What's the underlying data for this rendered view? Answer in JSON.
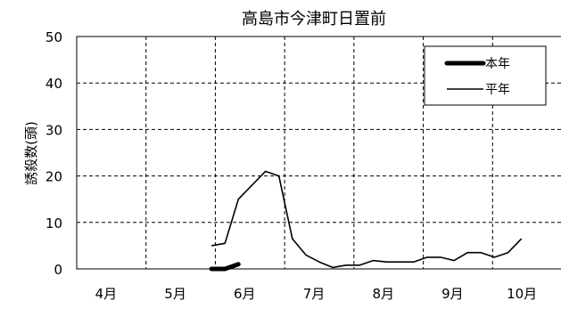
{
  "chart_data": {
    "type": "line",
    "title": "高島市今津町日置前",
    "ylabel": "誘殺数(頭)",
    "xlabel": "",
    "ylim": [
      0,
      50
    ],
    "yticks": [
      0,
      10,
      20,
      30,
      40,
      50
    ],
    "xlim": [
      0,
      36
    ],
    "categories": [
      "4月",
      "5月",
      "6月",
      "7月",
      "8月",
      "9月",
      "10月"
    ],
    "grid": true,
    "legend_position": "top-right",
    "series": [
      {
        "name": "本年",
        "style": "thick",
        "x": [
          10,
          11,
          12
        ],
        "y": [
          0,
          0,
          1
        ]
      },
      {
        "name": "平年",
        "style": "thin",
        "x": [
          10,
          11,
          12,
          14,
          15,
          16,
          17,
          18,
          19,
          20,
          21,
          22,
          23,
          24,
          25,
          26,
          27,
          28,
          29,
          30,
          31,
          32
        ],
        "y": [
          5,
          5.5,
          15,
          21,
          20,
          6.5,
          3,
          1.5,
          0.3,
          0.8,
          0.8,
          1.8,
          1.5,
          1.5,
          1.5,
          2.5,
          2.5,
          1.8,
          3.5,
          3.5,
          2.5,
          3.5
        ]
      }
    ],
    "extra_avg_point": {
      "x": 33,
      "y": 6.5
    }
  }
}
